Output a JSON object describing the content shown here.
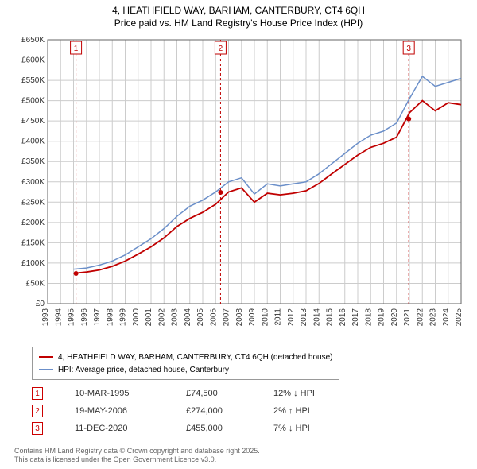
{
  "title": {
    "line1": "4, HEATHFIELD WAY, BARHAM, CANTERBURY, CT4 6QH",
    "line2": "Price paid vs. HM Land Registry's House Price Index (HPI)"
  },
  "chart": {
    "type": "line",
    "background_color": "#ffffff",
    "grid_color": "#cccccc",
    "grid_line_width": 1,
    "axis_color": "#666666",
    "axis_label_color": "#333333",
    "axis_fontsize": 10,
    "x": {
      "min": 1993,
      "max": 2025,
      "ticks": [
        1993,
        1994,
        1995,
        1996,
        1997,
        1998,
        1999,
        2000,
        2001,
        2002,
        2003,
        2004,
        2005,
        2006,
        2007,
        2008,
        2009,
        2010,
        2011,
        2012,
        2013,
        2014,
        2015,
        2016,
        2017,
        2018,
        2019,
        2020,
        2021,
        2022,
        2023,
        2024,
        2025
      ],
      "tick_labels": [
        "1993",
        "1994",
        "1995",
        "1996",
        "1997",
        "1998",
        "1999",
        "2000",
        "2001",
        "2002",
        "2003",
        "2004",
        "2005",
        "2006",
        "2007",
        "2008",
        "2009",
        "2010",
        "2011",
        "2012",
        "2013",
        "2014",
        "2015",
        "2016",
        "2017",
        "2018",
        "2019",
        "2020",
        "2021",
        "2022",
        "2023",
        "2024",
        "2025"
      ],
      "rotate_labels": -90
    },
    "y": {
      "min": 0,
      "max": 650000,
      "ticks": [
        0,
        50000,
        100000,
        150000,
        200000,
        250000,
        300000,
        350000,
        400000,
        450000,
        500000,
        550000,
        600000,
        650000
      ],
      "tick_labels": [
        "£0",
        "£50K",
        "£100K",
        "£150K",
        "£200K",
        "£250K",
        "£300K",
        "£350K",
        "£400K",
        "£450K",
        "£500K",
        "£550K",
        "£600K",
        "£650K"
      ]
    },
    "series": [
      {
        "name": "HPI: Average price, detached house, Canterbury",
        "color": "#6b8fc9",
        "line_width": 1.5,
        "x": [
          1995,
          1996,
          1997,
          1998,
          1999,
          2000,
          2001,
          2002,
          2003,
          2004,
          2005,
          2006,
          2007,
          2008,
          2009,
          2010,
          2011,
          2012,
          2013,
          2014,
          2015,
          2016,
          2017,
          2018,
          2019,
          2020,
          2021,
          2022,
          2023,
          2024,
          2025
        ],
        "y": [
          85000,
          88000,
          95000,
          105000,
          120000,
          140000,
          160000,
          185000,
          215000,
          240000,
          255000,
          275000,
          300000,
          310000,
          270000,
          295000,
          290000,
          295000,
          300000,
          320000,
          345000,
          370000,
          395000,
          415000,
          425000,
          445000,
          505000,
          560000,
          535000,
          545000,
          555000
        ]
      },
      {
        "name": "4, HEATHFIELD WAY, BARHAM, CANTERBURY, CT4 6QH (detached house)",
        "color": "#c00000",
        "line_width": 1.8,
        "x": [
          1995,
          1996,
          1997,
          1998,
          1999,
          2000,
          2001,
          2002,
          2003,
          2004,
          2005,
          2006,
          2007,
          2008,
          2009,
          2010,
          2011,
          2012,
          2013,
          2014,
          2015,
          2016,
          2017,
          2018,
          2019,
          2020,
          2021,
          2022,
          2023,
          2024,
          2025
        ],
        "y": [
          74500,
          78000,
          83000,
          92000,
          105000,
          122000,
          140000,
          162000,
          190000,
          210000,
          225000,
          245000,
          275000,
          285000,
          250000,
          272000,
          268000,
          272000,
          278000,
          296000,
          320000,
          343000,
          366000,
          385000,
          395000,
          410000,
          470000,
          500000,
          475000,
          495000,
          490000
        ]
      }
    ],
    "sale_markers": [
      {
        "num": "1",
        "x": 1995.19,
        "y": 74500,
        "line_color": "#c00000",
        "line_dash": "3,3"
      },
      {
        "num": "2",
        "x": 2006.38,
        "y": 274000,
        "line_color": "#c00000",
        "line_dash": "3,3"
      },
      {
        "num": "3",
        "x": 2020.95,
        "y": 455000,
        "line_color": "#c00000",
        "line_dash": "3,3"
      }
    ],
    "marker_box": {
      "border_color": "#c00000",
      "text_color": "#c00000",
      "bg": "#ffffff",
      "fontsize": 10
    },
    "point_marker": {
      "color": "#c00000",
      "radius": 3
    }
  },
  "legend": {
    "items": [
      {
        "label": "4, HEATHFIELD WAY, BARHAM, CANTERBURY, CT4 6QH (detached house)",
        "color": "#c00000",
        "width": 2
      },
      {
        "label": "HPI: Average price, detached house, Canterbury",
        "color": "#6b8fc9",
        "width": 2
      }
    ],
    "fontsize": 10,
    "border_color": "#999999"
  },
  "sales": [
    {
      "num": "1",
      "date": "10-MAR-1995",
      "price": "£74,500",
      "delta": "12% ↓ HPI"
    },
    {
      "num": "2",
      "date": "19-MAY-2006",
      "price": "£274,000",
      "delta": "2% ↑ HPI"
    },
    {
      "num": "3",
      "date": "11-DEC-2020",
      "price": "£455,000",
      "delta": "7% ↓ HPI"
    }
  ],
  "footer": {
    "line1": "Contains HM Land Registry data © Crown copyright and database right 2025.",
    "line2": "This data is licensed under the Open Government Licence v3.0."
  }
}
